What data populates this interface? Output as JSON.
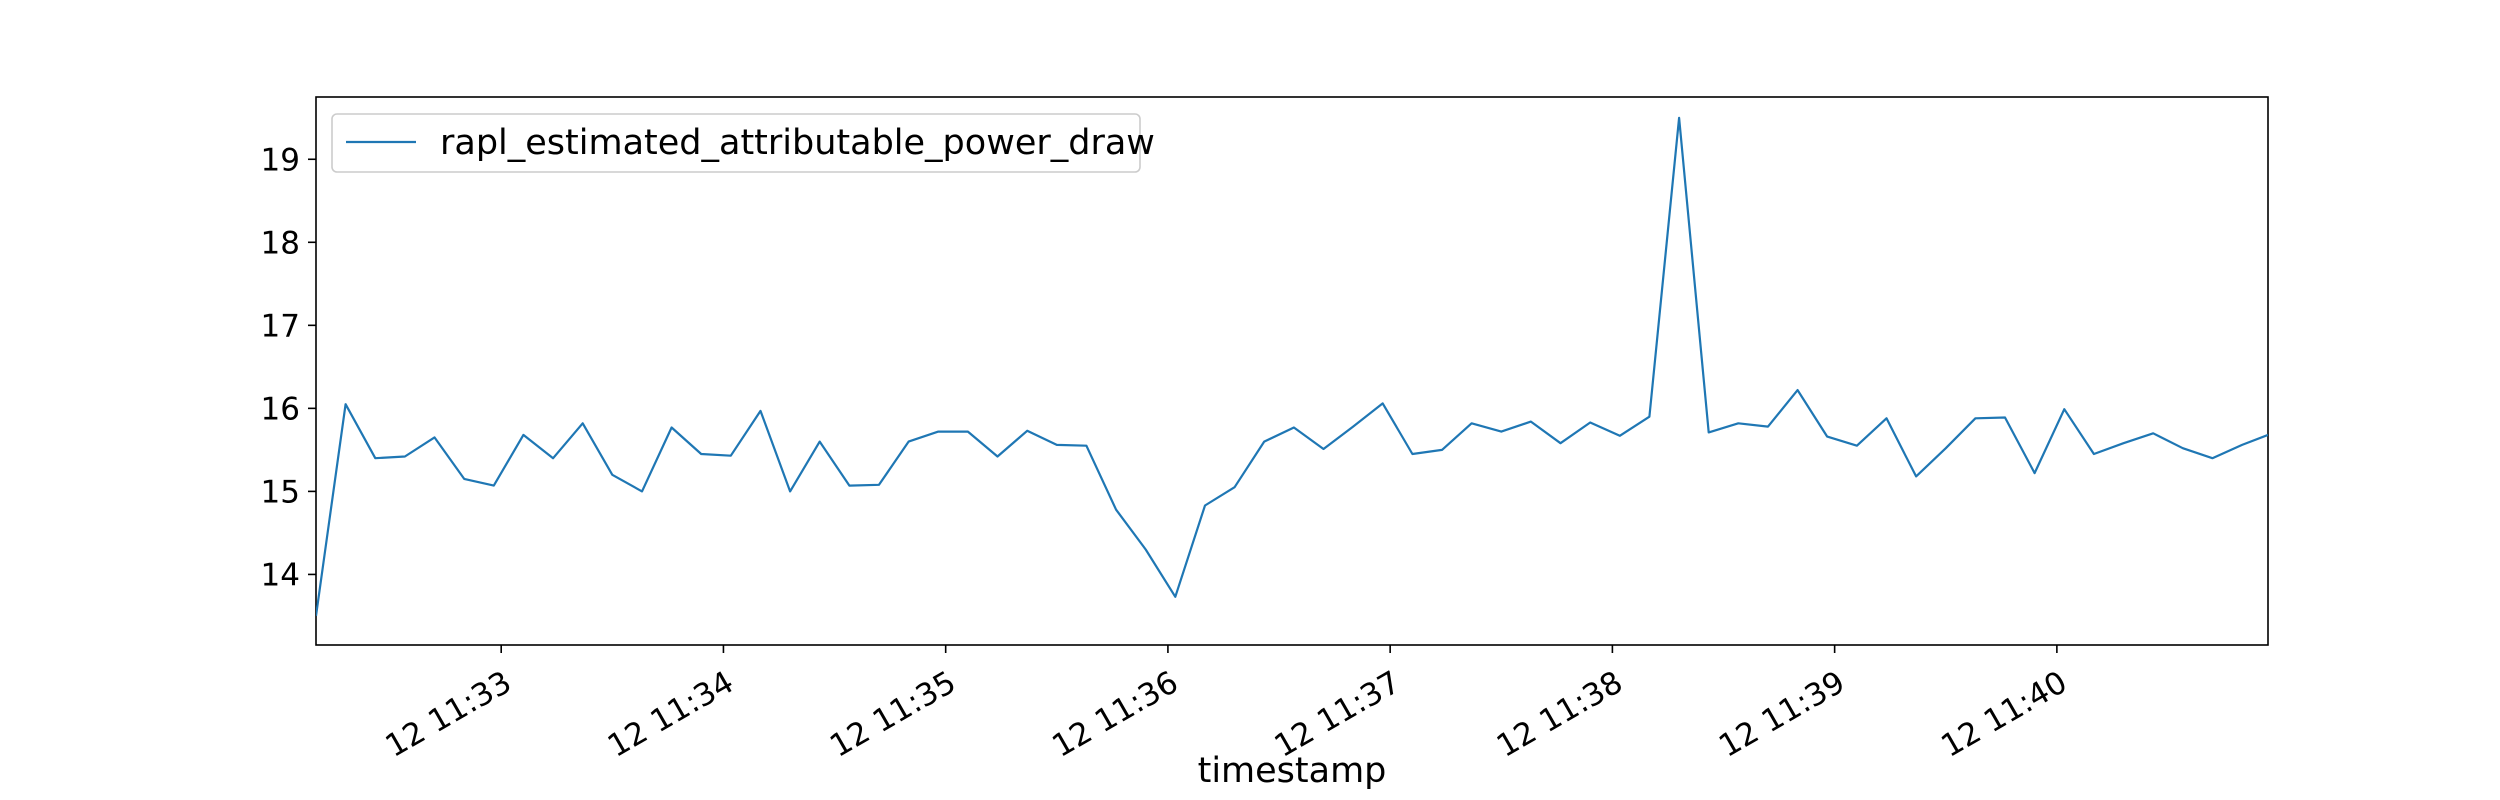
{
  "chart_data": {
    "type": "line",
    "title": "",
    "xlabel": "timestamp",
    "ylabel": "",
    "x_tick_labels": [
      "12 11:33",
      "12 11:34",
      "12 11:35",
      "12 11:36",
      "12 11:37",
      "12 11:38",
      "12 11:39",
      "12 11:40"
    ],
    "x_tick_minutes": [
      33,
      34,
      35,
      36,
      37,
      38,
      39,
      40
    ],
    "y_tick_values": [
      14,
      15,
      16,
      17,
      18,
      19
    ],
    "xlim": [
      "11:32:10",
      "11:40:57"
    ],
    "ylim": [
      13.15,
      19.75
    ],
    "grid": false,
    "legend_position": "top-left",
    "series": [
      {
        "name": "rapl_estimated_attributable_power_draw",
        "color": "#1f77b4",
        "times": [
          "11:32:10",
          "11:32:18",
          "11:32:26",
          "11:32:34",
          "11:32:42",
          "11:32:50",
          "11:32:58",
          "11:33:06",
          "11:33:14",
          "11:33:22",
          "11:33:30",
          "11:33:38",
          "11:33:46",
          "11:33:54",
          "11:34:02",
          "11:34:10",
          "11:34:18",
          "11:34:26",
          "11:34:34",
          "11:34:42",
          "11:34:50",
          "11:34:58",
          "11:35:06",
          "11:35:14",
          "11:35:22",
          "11:35:30",
          "11:35:38",
          "11:35:46",
          "11:35:54",
          "11:36:02",
          "11:36:10",
          "11:36:18",
          "11:36:26",
          "11:36:34",
          "11:36:42",
          "11:36:50",
          "11:36:58",
          "11:37:06",
          "11:37:14",
          "11:37:22",
          "11:37:30",
          "11:37:38",
          "11:37:46",
          "11:37:54",
          "11:38:02",
          "11:38:10",
          "11:38:18",
          "11:38:26",
          "11:38:34",
          "11:38:42",
          "11:38:50",
          "11:38:58",
          "11:39:06",
          "11:39:14",
          "11:39:22",
          "11:39:30",
          "11:39:38",
          "11:39:46",
          "11:39:54",
          "11:40:02",
          "11:40:10",
          "11:40:18",
          "11:40:26",
          "11:40:34",
          "11:40:42",
          "11:40:50",
          "11:40:57"
        ],
        "values": [
          13.5,
          16.05,
          15.4,
          15.42,
          15.65,
          15.15,
          15.07,
          15.68,
          15.4,
          15.82,
          15.2,
          15.0,
          15.77,
          15.45,
          15.43,
          15.97,
          15.0,
          15.6,
          15.07,
          15.08,
          15.6,
          15.72,
          15.72,
          15.42,
          15.73,
          15.56,
          15.55,
          14.78,
          14.3,
          13.73,
          14.83,
          15.05,
          15.6,
          15.77,
          15.51,
          15.78,
          16.06,
          15.45,
          15.5,
          15.82,
          15.72,
          15.84,
          15.58,
          15.83,
          15.67,
          15.9,
          19.5,
          15.71,
          15.82,
          15.78,
          16.22,
          15.66,
          15.55,
          15.88,
          15.18,
          15.52,
          15.88,
          15.89,
          15.22,
          15.99,
          15.45,
          15.58,
          15.7,
          15.52,
          15.4,
          15.56,
          15.68
        ]
      }
    ]
  }
}
